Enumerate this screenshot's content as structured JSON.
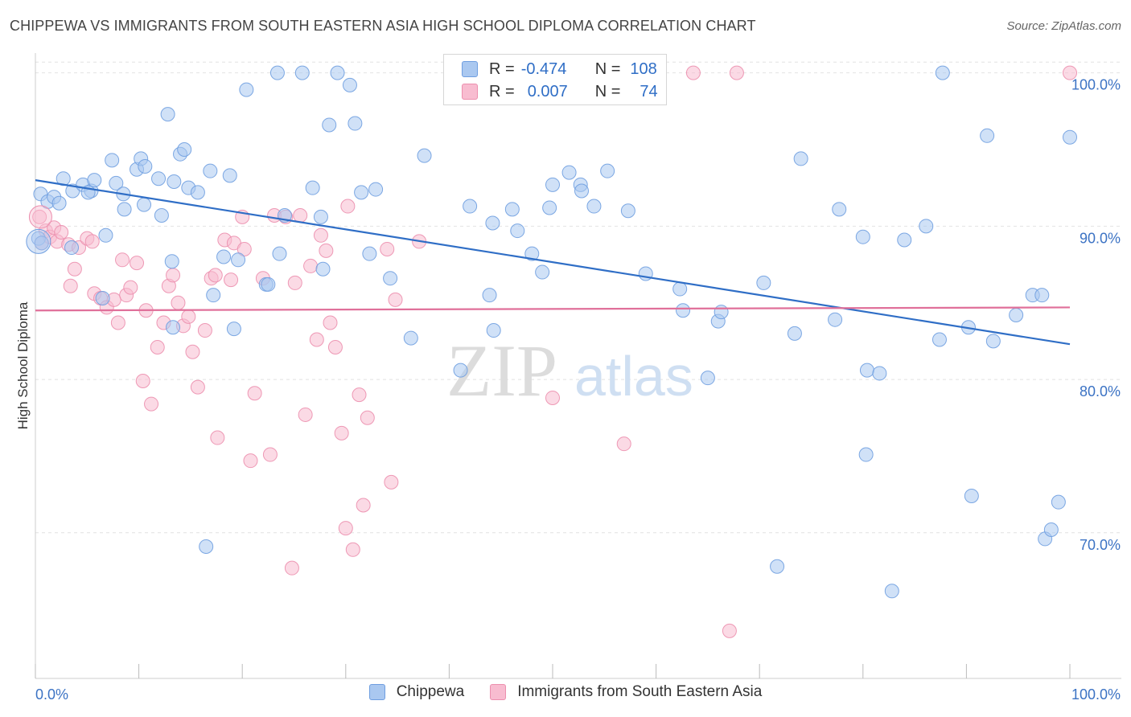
{
  "header": {
    "title": "CHIPPEWA VS IMMIGRANTS FROM SOUTH EASTERN ASIA HIGH SCHOOL DIPLOMA CORRELATION CHART",
    "source": "Source: ZipAtlas.com"
  },
  "legend": {
    "r_label": "R =",
    "n_label": "N =",
    "rows": [
      {
        "r": "-0.474",
        "n": "108",
        "fill": "#aac8f0",
        "stroke": "#6f9ee0"
      },
      {
        "r": "0.007",
        "n": "74",
        "fill": "#f8bcd0",
        "stroke": "#ec8fae"
      }
    ]
  },
  "watermark": {
    "zip": "ZIP",
    "atlas": "atlas"
  },
  "bottom_legend": [
    {
      "label": "Chippewa",
      "fill": "#aac8f0",
      "stroke": "#6f9ee0"
    },
    {
      "label": "Immigrants from South Eastern Asia",
      "fill": "#f8bcd0",
      "stroke": "#ec8fae"
    }
  ],
  "chart_data": {
    "type": "scatter",
    "title": "CHIPPEWA VS IMMIGRANTS FROM SOUTH EASTERN ASIA HIGH SCHOOL DIPLOMA CORRELATION CHART",
    "xlabel": "",
    "ylabel": "High School Diploma",
    "xlim": [
      0,
      100
    ],
    "ylim": [
      60.5,
      101.5
    ],
    "x_tick_labels": [
      {
        "value": 0,
        "label": "0.0%"
      },
      {
        "value": 100,
        "label": "100.0%"
      }
    ],
    "y_ticks": [
      {
        "value": 70,
        "label": "70.0%"
      },
      {
        "value": 80,
        "label": "80.0%"
      },
      {
        "value": 90,
        "label": "90.0%"
      },
      {
        "value": 100,
        "label": "100.0%"
      }
    ],
    "x_minor_ticks": [
      0,
      10,
      20,
      30,
      40,
      50,
      60,
      70,
      80,
      90,
      100
    ],
    "grid": true,
    "series": [
      {
        "name": "Chippewa",
        "color": "#6f9ee0",
        "fill": "#aac8f0",
        "trend": {
          "x0": 0,
          "y0": 93.0,
          "x1": 100,
          "y1": 82.3,
          "color": "#2f6ec6"
        },
        "points": [
          [
            0.5,
            92.1
          ],
          [
            1.2,
            91.6
          ],
          [
            1.8,
            91.9
          ],
          [
            2.3,
            91.5
          ],
          [
            2.7,
            93.1
          ],
          [
            3.6,
            92.3
          ],
          [
            4.6,
            92.7
          ],
          [
            5.4,
            92.3
          ],
          [
            5.1,
            92.2
          ],
          [
            5.7,
            93.0
          ],
          [
            7.4,
            94.3
          ],
          [
            7.8,
            92.8
          ],
          [
            8.5,
            92.1
          ],
          [
            8.6,
            91.1
          ],
          [
            9.8,
            93.7
          ],
          [
            10.2,
            94.4
          ],
          [
            10.5,
            91.4
          ],
          [
            10.6,
            93.9
          ],
          [
            11.9,
            93.1
          ],
          [
            12.2,
            90.7
          ],
          [
            12.8,
            97.3
          ],
          [
            13.2,
            87.7
          ],
          [
            13.3,
            83.4
          ],
          [
            13.4,
            92.9
          ],
          [
            14.0,
            94.7
          ],
          [
            14.4,
            95.0
          ],
          [
            14.8,
            92.5
          ],
          [
            15.7,
            92.2
          ],
          [
            16.5,
            69.1
          ],
          [
            16.9,
            93.6
          ],
          [
            17.2,
            85.5
          ],
          [
            18.2,
            88.0
          ],
          [
            18.8,
            93.3
          ],
          [
            19.2,
            83.3
          ],
          [
            19.6,
            87.8
          ],
          [
            20.4,
            98.9
          ],
          [
            22.3,
            86.2
          ],
          [
            22.5,
            86.2
          ],
          [
            23.4,
            100.0
          ],
          [
            23.6,
            88.2
          ],
          [
            24.1,
            90.7
          ],
          [
            25.8,
            100.0
          ],
          [
            26.8,
            92.5
          ],
          [
            27.6,
            90.6
          ],
          [
            27.8,
            87.2
          ],
          [
            28.4,
            96.6
          ],
          [
            29.2,
            100.0
          ],
          [
            30.4,
            99.2
          ],
          [
            30.9,
            96.7
          ],
          [
            31.5,
            92.2
          ],
          [
            32.3,
            88.2
          ],
          [
            32.9,
            92.4
          ],
          [
            34.3,
            86.6
          ],
          [
            36.3,
            82.7
          ],
          [
            37.6,
            94.6
          ],
          [
            41.1,
            80.6
          ],
          [
            42.0,
            91.3
          ],
          [
            43.9,
            85.5
          ],
          [
            44.2,
            90.2
          ],
          [
            44.3,
            83.2
          ],
          [
            46.1,
            91.1
          ],
          [
            46.6,
            89.7
          ],
          [
            48.0,
            88.2
          ],
          [
            49.0,
            87.0
          ],
          [
            49.7,
            91.2
          ],
          [
            50.0,
            92.7
          ],
          [
            51.6,
            93.5
          ],
          [
            52.7,
            92.7
          ],
          [
            52.8,
            92.3
          ],
          [
            54.0,
            91.3
          ],
          [
            55.3,
            93.6
          ],
          [
            57.3,
            91.0
          ],
          [
            59.0,
            86.9
          ],
          [
            62.3,
            85.9
          ],
          [
            62.6,
            84.5
          ],
          [
            65.0,
            80.1
          ],
          [
            66.0,
            83.8
          ],
          [
            66.3,
            84.4
          ],
          [
            70.4,
            86.3
          ],
          [
            73.4,
            83.0
          ],
          [
            74.0,
            94.4
          ],
          [
            77.3,
            83.9
          ],
          [
            77.7,
            91.1
          ],
          [
            80.0,
            89.3
          ],
          [
            80.3,
            75.1
          ],
          [
            80.4,
            80.6
          ],
          [
            81.6,
            80.4
          ],
          [
            84.0,
            89.1
          ],
          [
            86.1,
            90.0
          ],
          [
            87.4,
            82.6
          ],
          [
            87.7,
            100.0
          ],
          [
            90.2,
            83.4
          ],
          [
            90.5,
            72.4
          ],
          [
            92.0,
            95.9
          ],
          [
            92.6,
            82.5
          ],
          [
            94.8,
            84.2
          ],
          [
            96.4,
            85.5
          ],
          [
            97.3,
            85.5
          ],
          [
            97.6,
            69.6
          ],
          [
            98.2,
            70.2
          ],
          [
            98.9,
            72.0
          ],
          [
            100.0,
            95.8
          ],
          [
            82.8,
            66.2
          ],
          [
            71.7,
            67.8
          ],
          [
            0.3,
            89.2
          ],
          [
            0.6,
            88.9
          ],
          [
            3.5,
            88.6
          ],
          [
            6.5,
            85.3
          ],
          [
            6.8,
            89.4
          ]
        ]
      },
      {
        "name": "Immigrants from South Eastern Asia",
        "color": "#ec8fae",
        "fill": "#f8bcd0",
        "trend": {
          "x0": 0,
          "y0": 84.5,
          "x1": 100,
          "y1": 84.7,
          "color": "#e0709a"
        },
        "points": [
          [
            0.4,
            90.6
          ],
          [
            0.6,
            88.9
          ],
          [
            1.0,
            89.7
          ],
          [
            1.4,
            89.3
          ],
          [
            1.8,
            89.9
          ],
          [
            2.1,
            89.0
          ],
          [
            2.5,
            89.6
          ],
          [
            3.2,
            88.8
          ],
          [
            3.4,
            86.1
          ],
          [
            3.8,
            87.2
          ],
          [
            4.2,
            88.6
          ],
          [
            5.0,
            89.2
          ],
          [
            5.5,
            89.0
          ],
          [
            5.7,
            85.6
          ],
          [
            6.3,
            85.3
          ],
          [
            6.9,
            84.7
          ],
          [
            7.6,
            85.2
          ],
          [
            8.0,
            83.7
          ],
          [
            8.4,
            87.8
          ],
          [
            8.8,
            85.5
          ],
          [
            9.2,
            86.0
          ],
          [
            9.8,
            87.6
          ],
          [
            10.4,
            79.9
          ],
          [
            10.7,
            84.5
          ],
          [
            11.2,
            78.4
          ],
          [
            11.8,
            82.1
          ],
          [
            12.4,
            83.7
          ],
          [
            12.9,
            86.1
          ],
          [
            13.3,
            86.8
          ],
          [
            13.8,
            85.0
          ],
          [
            14.3,
            83.5
          ],
          [
            14.8,
            84.1
          ],
          [
            15.2,
            81.8
          ],
          [
            15.7,
            79.5
          ],
          [
            16.4,
            83.2
          ],
          [
            17.0,
            86.6
          ],
          [
            17.4,
            86.8
          ],
          [
            17.6,
            76.2
          ],
          [
            18.3,
            89.1
          ],
          [
            18.9,
            86.5
          ],
          [
            19.2,
            88.9
          ],
          [
            20.2,
            88.5
          ],
          [
            20.0,
            90.6
          ],
          [
            20.8,
            74.7
          ],
          [
            21.2,
            79.1
          ],
          [
            22.0,
            86.6
          ],
          [
            22.7,
            75.1
          ],
          [
            23.1,
            90.7
          ],
          [
            24.2,
            90.6
          ],
          [
            24.8,
            67.7
          ],
          [
            25.1,
            86.3
          ],
          [
            25.6,
            90.7
          ],
          [
            26.1,
            77.7
          ],
          [
            26.6,
            87.4
          ],
          [
            27.2,
            82.6
          ],
          [
            27.6,
            89.4
          ],
          [
            28.1,
            88.4
          ],
          [
            28.5,
            83.7
          ],
          [
            29.0,
            82.1
          ],
          [
            29.6,
            76.5
          ],
          [
            30.0,
            70.3
          ],
          [
            30.2,
            91.3
          ],
          [
            30.7,
            68.9
          ],
          [
            31.3,
            79.0
          ],
          [
            31.7,
            71.8
          ],
          [
            32.1,
            77.5
          ],
          [
            34.0,
            88.5
          ],
          [
            34.4,
            73.3
          ],
          [
            34.8,
            85.2
          ],
          [
            37.1,
            89.0
          ],
          [
            50.0,
            78.8
          ],
          [
            56.9,
            75.8
          ],
          [
            63.6,
            100.0
          ],
          [
            67.8,
            100.0
          ]
        ],
        "extra_points": [
          [
            67.1,
            63.6
          ],
          [
            100.0,
            100.0
          ]
        ]
      }
    ]
  }
}
